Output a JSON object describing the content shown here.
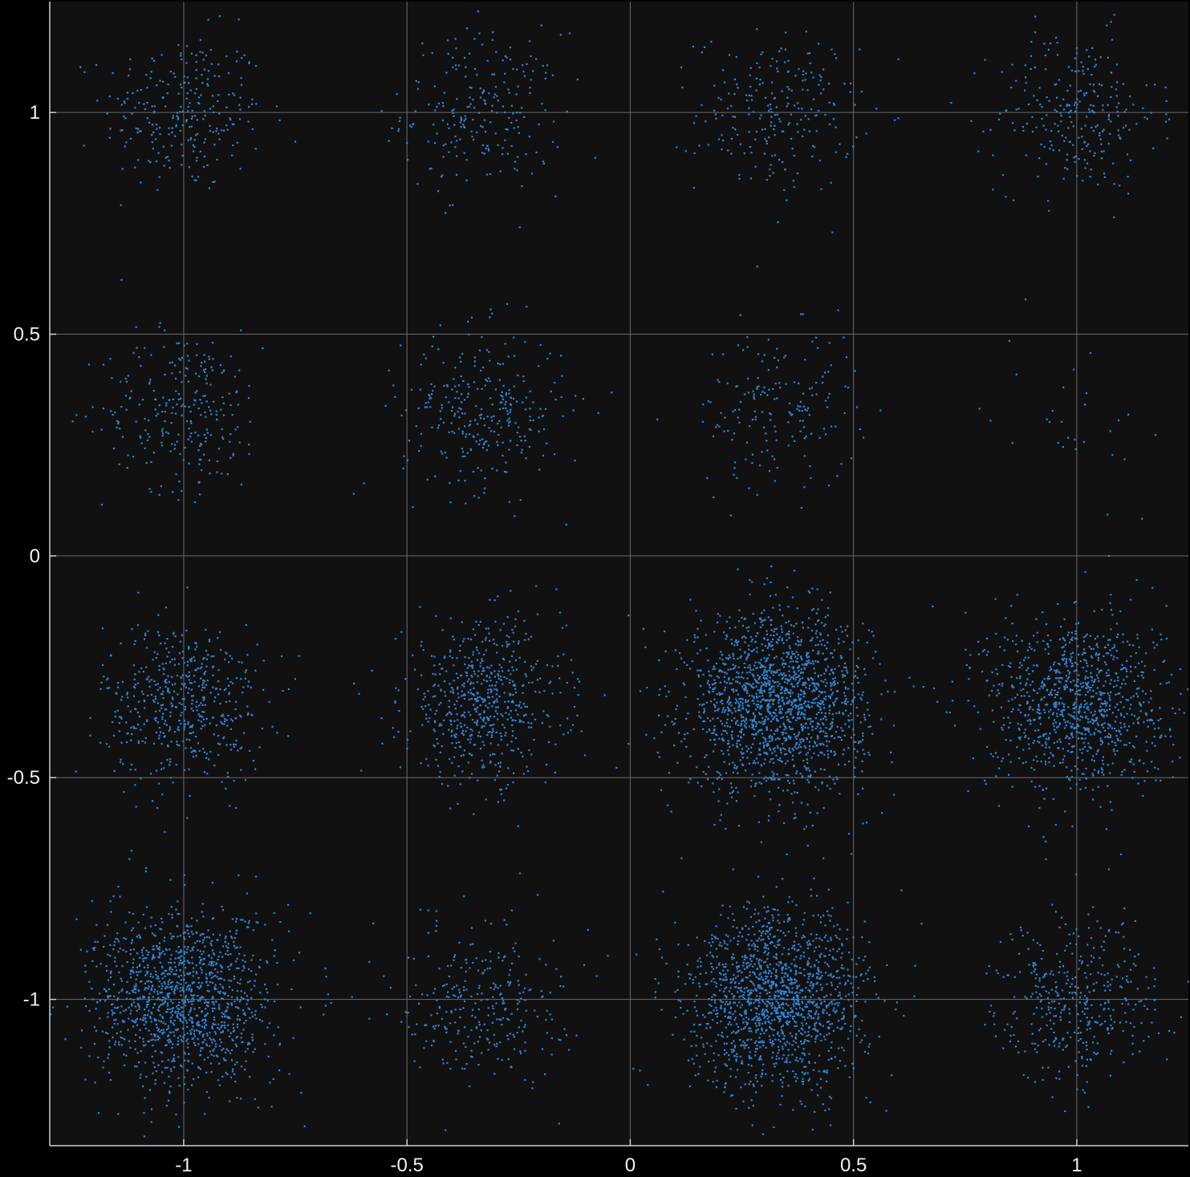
{
  "chart_data": {
    "type": "scatter",
    "title": "",
    "xlabel": "",
    "ylabel": "",
    "xlim": [
      -1.3,
      1.25
    ],
    "ylim": [
      -1.33,
      1.25
    ],
    "grid": true,
    "legend": "none",
    "x_ticks": [
      -1,
      -0.5,
      0,
      0.5,
      1
    ],
    "x_tick_labels": [
      "-1",
      "-0.5",
      "0",
      "0.5",
      "1"
    ],
    "y_ticks": [
      1,
      0.5,
      0,
      -0.5,
      -1
    ],
    "y_tick_labels": [
      "1",
      "0.5",
      "0",
      "-0.5",
      "-1"
    ],
    "point_color": "#2f86d8",
    "background_color": "#111111",
    "page_color": "#000000",
    "grid_color": "#6a6a6a",
    "axis_color": "#cfcfcf",
    "note_points": "constellation clusters: center (x,y), approximate point count, spread (std dev in data units)",
    "series": [
      {
        "clusters": [
          {
            "x": -1.0,
            "y": 1.0,
            "count": 260,
            "spread": 0.09
          },
          {
            "x": -0.33,
            "y": 1.0,
            "count": 230,
            "spread": 0.09
          },
          {
            "x": 0.33,
            "y": 1.0,
            "count": 230,
            "spread": 0.09
          },
          {
            "x": 1.0,
            "y": 1.0,
            "count": 260,
            "spread": 0.09
          },
          {
            "x": -1.0,
            "y": 0.33,
            "count": 260,
            "spread": 0.09
          },
          {
            "x": -0.33,
            "y": 0.33,
            "count": 300,
            "spread": 0.09
          },
          {
            "x": 0.33,
            "y": 0.33,
            "count": 180,
            "spread": 0.09
          },
          {
            "x": 1.0,
            "y": 0.33,
            "count": 30,
            "spread": 0.1
          },
          {
            "x": -1.0,
            "y": -0.33,
            "count": 520,
            "spread": 0.09
          },
          {
            "x": -0.33,
            "y": -0.33,
            "count": 620,
            "spread": 0.09
          },
          {
            "x": 0.33,
            "y": -0.33,
            "count": 1700,
            "spread": 0.1
          },
          {
            "x": 1.0,
            "y": -0.33,
            "count": 1000,
            "spread": 0.1
          },
          {
            "x": -1.0,
            "y": -1.0,
            "count": 1300,
            "spread": 0.1
          },
          {
            "x": -0.33,
            "y": -1.0,
            "count": 300,
            "spread": 0.09
          },
          {
            "x": 0.33,
            "y": -1.0,
            "count": 1500,
            "spread": 0.1
          },
          {
            "x": 1.0,
            "y": -1.0,
            "count": 400,
            "spread": 0.09
          }
        ]
      }
    ]
  }
}
